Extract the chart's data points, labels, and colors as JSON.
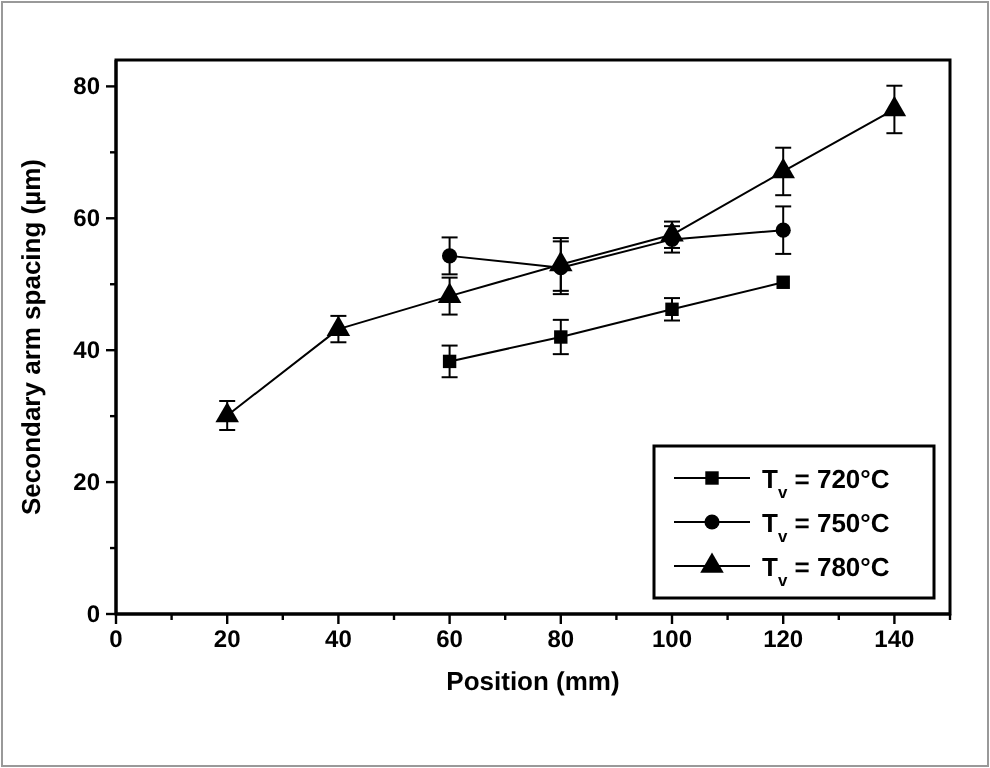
{
  "chart_data": {
    "type": "line",
    "xlabel": "Position (mm)",
    "ylabel": "Secondary arm spacing (µm)",
    "xlim": [
      0,
      150
    ],
    "ylim": [
      0,
      84
    ],
    "xticks": [
      0,
      {
        "value": 10,
        "label": null
      },
      20,
      {
        "value": 30,
        "label": null
      },
      40,
      {
        "value": 50,
        "label": null
      },
      60,
      {
        "value": 70,
        "label": null
      },
      80,
      {
        "value": 90,
        "label": null
      },
      100,
      {
        "value": 110,
        "label": null
      },
      120,
      {
        "value": 130,
        "label": null
      },
      140,
      {
        "value": 150,
        "label": null
      }
    ],
    "yticks": [
      0,
      {
        "value": 10,
        "label": null
      },
      20,
      {
        "value": 30,
        "label": null
      },
      40,
      {
        "value": 50,
        "label": null
      },
      60,
      {
        "value": 70,
        "label": null
      },
      80
    ],
    "legend": "bottom right",
    "grid": false,
    "line_style": "solid",
    "series": [
      {
        "name": "T$_{v}$ = 720°C",
        "color": "#000000",
        "marker": "square",
        "x": [
          60,
          80,
          100,
          120
        ],
        "values": [
          38.3,
          42.0,
          46.2,
          50.3
        ],
        "errors": [
          2.4,
          2.6,
          1.7,
          null
        ]
      },
      {
        "name": "T$_{v}$ = 750°C",
        "color": "#000000",
        "marker": "circle",
        "x": [
          60,
          80,
          100,
          120
        ],
        "values": [
          54.3,
          52.5,
          56.8,
          58.2
        ],
        "errors": [
          2.8,
          4,
          2,
          3.6
        ]
      },
      {
        "name": "T$_{v}$ = 780°C",
        "color": "#000000",
        "marker": "triangle",
        "x": [
          20,
          40,
          60,
          80,
          100,
          120,
          140
        ],
        "values": [
          30.1,
          43.2,
          48.2,
          53.0,
          57.5,
          67.1,
          76.5
        ],
        "errors": [
          2.2,
          2,
          2.8,
          4,
          2,
          3.6,
          3.6
        ]
      }
    ]
  }
}
